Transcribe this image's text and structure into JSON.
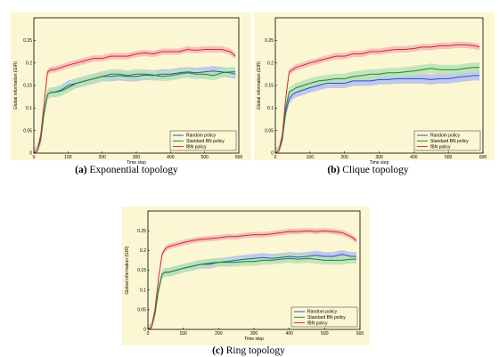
{
  "chart_data": [
    {
      "type": "line",
      "caption_tag": "(a)",
      "caption": "Exponential topology",
      "xlabel": "Time step",
      "ylabel": "Global information (GIR)",
      "xlim": [
        0,
        600
      ],
      "ylim": [
        0,
        0.3
      ],
      "xticks": [
        "0",
        "100",
        "200",
        "300",
        "400",
        "500",
        "600"
      ],
      "yticks": [
        "0",
        "0.05",
        "0.1",
        "0.15",
        "0.2",
        "0.25"
      ],
      "legend_position": "bottom-right",
      "x": [
        0,
        10,
        20,
        30,
        40,
        50,
        60,
        80,
        100,
        125,
        150,
        175,
        200,
        225,
        250,
        275,
        300,
        325,
        350,
        375,
        400,
        425,
        450,
        475,
        500,
        525,
        550,
        575,
        590
      ],
      "series": [
        {
          "name": "Random policy",
          "color": "#2f4fc8",
          "band": "#b4c0ee",
          "values": [
            0,
            0.005,
            0.03,
            0.09,
            0.13,
            0.135,
            0.135,
            0.14,
            0.15,
            0.155,
            0.16,
            0.165,
            0.17,
            0.17,
            0.172,
            0.17,
            0.17,
            0.173,
            0.172,
            0.175,
            0.175,
            0.178,
            0.18,
            0.178,
            0.18,
            0.182,
            0.18,
            0.178,
            0.175
          ],
          "band_width": 0.011
        },
        {
          "name": "Standard BN policy",
          "color": "#1f8a1f",
          "band": "#b8e2b8",
          "values": [
            0,
            0.005,
            0.03,
            0.09,
            0.13,
            0.135,
            0.135,
            0.138,
            0.145,
            0.155,
            0.16,
            0.165,
            0.17,
            0.175,
            0.175,
            0.172,
            0.175,
            0.175,
            0.173,
            0.17,
            0.172,
            0.175,
            0.178,
            0.175,
            0.175,
            0.172,
            0.178,
            0.18,
            0.18
          ],
          "band_width": 0.011
        },
        {
          "name": "fBN policy",
          "color": "#d42a2a",
          "band": "#f2b8b8",
          "values": [
            0,
            0.005,
            0.04,
            0.11,
            0.18,
            0.185,
            0.185,
            0.19,
            0.195,
            0.2,
            0.205,
            0.21,
            0.21,
            0.215,
            0.215,
            0.215,
            0.22,
            0.222,
            0.22,
            0.225,
            0.225,
            0.225,
            0.23,
            0.228,
            0.23,
            0.23,
            0.23,
            0.225,
            0.215
          ],
          "band_width": 0.007
        }
      ]
    },
    {
      "type": "line",
      "caption_tag": "(b)",
      "caption": "Clique topology",
      "xlabel": "Time step",
      "ylabel": "Global information (GIR)",
      "xlim": [
        0,
        600
      ],
      "ylim": [
        0,
        0.3
      ],
      "xticks": [
        "0",
        "100",
        "200",
        "300",
        "400",
        "500",
        "600"
      ],
      "yticks": [
        "0",
        "0.05",
        "0.1",
        "0.15",
        "0.2",
        "0.25"
      ],
      "legend_position": "bottom-right",
      "x": [
        0,
        10,
        20,
        30,
        40,
        50,
        60,
        80,
        100,
        125,
        150,
        175,
        200,
        225,
        250,
        275,
        300,
        325,
        350,
        375,
        400,
        425,
        450,
        475,
        500,
        525,
        550,
        575,
        590
      ],
      "series": [
        {
          "name": "Random policy",
          "color": "#2f4fc8",
          "band": "#b4c0ee",
          "values": [
            0,
            0.005,
            0.03,
            0.09,
            0.12,
            0.13,
            0.135,
            0.14,
            0.145,
            0.15,
            0.155,
            0.155,
            0.155,
            0.16,
            0.16,
            0.16,
            0.163,
            0.163,
            0.165,
            0.165,
            0.165,
            0.165,
            0.163,
            0.165,
            0.165,
            0.168,
            0.17,
            0.172,
            0.172
          ],
          "band_width": 0.011
        },
        {
          "name": "Standard BN policy",
          "color": "#1f8a1f",
          "band": "#b8e2b8",
          "values": [
            0,
            0.005,
            0.03,
            0.1,
            0.135,
            0.14,
            0.145,
            0.15,
            0.155,
            0.16,
            0.162,
            0.165,
            0.165,
            0.17,
            0.172,
            0.175,
            0.175,
            0.178,
            0.178,
            0.18,
            0.182,
            0.185,
            0.188,
            0.185,
            0.185,
            0.185,
            0.188,
            0.19,
            0.19
          ],
          "band_width": 0.011
        },
        {
          "name": "fBN policy",
          "color": "#d42a2a",
          "band": "#f2b8b8",
          "values": [
            0,
            0.005,
            0.04,
            0.12,
            0.18,
            0.185,
            0.19,
            0.195,
            0.2,
            0.205,
            0.21,
            0.215,
            0.215,
            0.22,
            0.22,
            0.225,
            0.225,
            0.228,
            0.23,
            0.23,
            0.232,
            0.235,
            0.235,
            0.238,
            0.238,
            0.24,
            0.24,
            0.238,
            0.235
          ],
          "band_width": 0.007
        }
      ]
    },
    {
      "type": "line",
      "caption_tag": "(c)",
      "caption": "Ring topology",
      "xlabel": "Time step",
      "ylabel": "Global information (GIR)",
      "xlim": [
        0,
        600
      ],
      "ylim": [
        0,
        0.3
      ],
      "xticks": [
        "0",
        "100",
        "200",
        "300",
        "400",
        "500",
        "600"
      ],
      "yticks": [
        "0",
        "0.05",
        "0.1",
        "0.15",
        "0.2",
        "0.25"
      ],
      "legend_position": "bottom-right",
      "x": [
        0,
        10,
        20,
        30,
        40,
        50,
        60,
        80,
        100,
        125,
        150,
        175,
        200,
        225,
        250,
        275,
        300,
        325,
        350,
        375,
        400,
        425,
        450,
        475,
        500,
        525,
        550,
        575,
        590
      ],
      "series": [
        {
          "name": "Random policy",
          "color": "#2f4fc8",
          "band": "#b4c0ee",
          "values": [
            0,
            0.005,
            0.04,
            0.1,
            0.14,
            0.145,
            0.145,
            0.15,
            0.155,
            0.16,
            0.165,
            0.165,
            0.17,
            0.172,
            0.175,
            0.178,
            0.18,
            0.182,
            0.18,
            0.182,
            0.185,
            0.183,
            0.185,
            0.188,
            0.185,
            0.185,
            0.19,
            0.185,
            0.185
          ],
          "band_width": 0.011
        },
        {
          "name": "Standard BN policy",
          "color": "#1f8a1f",
          "band": "#b8e2b8",
          "values": [
            0,
            0.005,
            0.04,
            0.1,
            0.14,
            0.145,
            0.145,
            0.15,
            0.155,
            0.16,
            0.165,
            0.168,
            0.17,
            0.17,
            0.17,
            0.172,
            0.172,
            0.175,
            0.175,
            0.178,
            0.18,
            0.178,
            0.18,
            0.178,
            0.175,
            0.175,
            0.175,
            0.178,
            0.178
          ],
          "band_width": 0.011
        },
        {
          "name": "fBN policy",
          "color": "#d42a2a",
          "band": "#f2b8b8",
          "values": [
            0,
            0.005,
            0.05,
            0.13,
            0.19,
            0.205,
            0.21,
            0.215,
            0.22,
            0.225,
            0.228,
            0.23,
            0.232,
            0.235,
            0.235,
            0.238,
            0.24,
            0.24,
            0.242,
            0.245,
            0.248,
            0.248,
            0.25,
            0.248,
            0.25,
            0.248,
            0.245,
            0.235,
            0.225
          ],
          "band_width": 0.007
        }
      ]
    }
  ]
}
